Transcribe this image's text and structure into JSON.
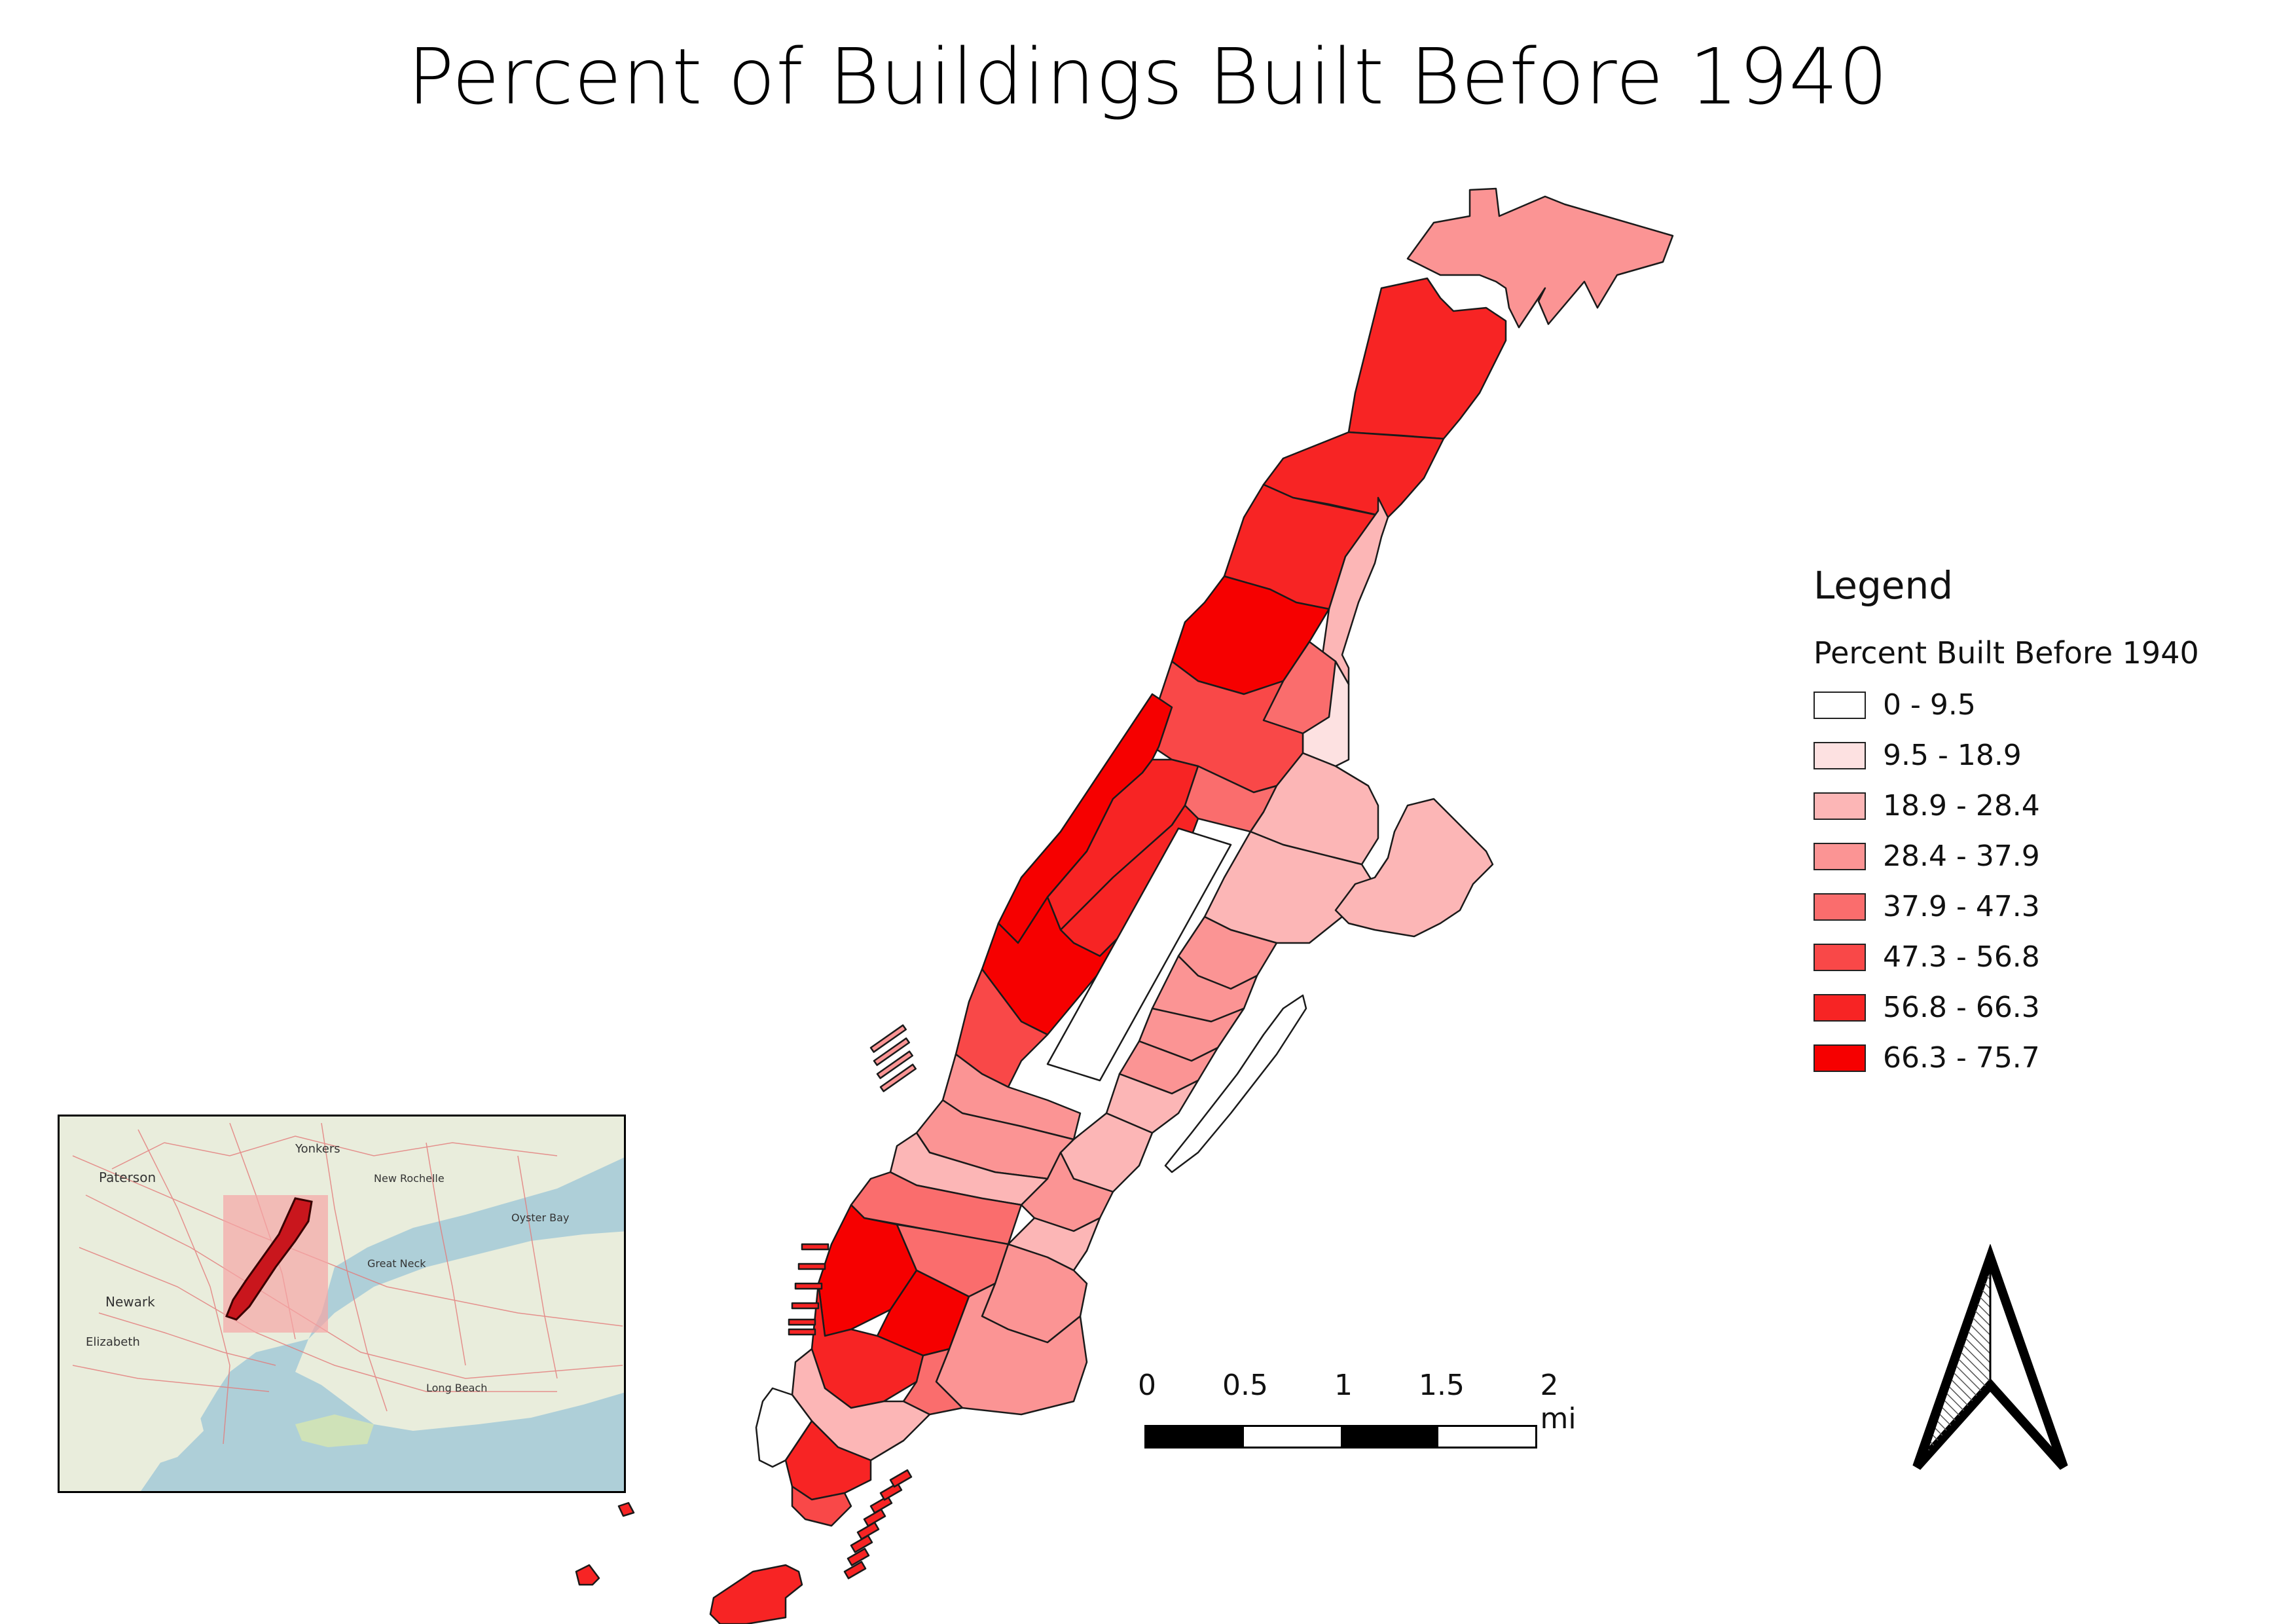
{
  "title": "Percent of Buildings Built Before 1940",
  "legend": {
    "title": "Legend",
    "subtitle": "Percent Built Before 1940",
    "classes": [
      {
        "label": "0 - 9.5",
        "color": "#ffffff"
      },
      {
        "label": "9.5 - 18.9",
        "color": "#fde1e1"
      },
      {
        "label": "18.9 - 28.4",
        "color": "#fcb6b6"
      },
      {
        "label": "28.4 - 37.9",
        "color": "#fb9494"
      },
      {
        "label": "37.9 - 47.3",
        "color": "#fa6d6d"
      },
      {
        "label": "47.3 - 56.8",
        "color": "#f94848"
      },
      {
        "label": "56.8 - 66.3",
        "color": "#f72424"
      },
      {
        "label": "66.3 - 75.7",
        "color": "#f60000"
      }
    ]
  },
  "scale_bar": {
    "ticks": [
      "0",
      "0.5",
      "1",
      "1.5",
      "2 mi"
    ]
  },
  "inset_labels": {
    "paterson": "Paterson",
    "yonkers": "Yonkers",
    "newark": "Newark",
    "elizabeth": "Elizabeth",
    "new_rochelle": "New Rochelle",
    "great_neck": "Great Neck",
    "long_beach": "Long Beach",
    "oyster_bay": "Oyster Bay"
  }
}
